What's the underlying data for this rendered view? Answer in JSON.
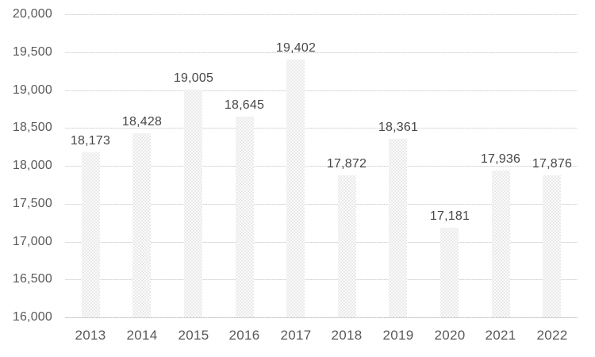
{
  "chart_data": {
    "type": "bar",
    "title": "",
    "xlabel": "",
    "ylabel": "",
    "categories": [
      "2013",
      "2014",
      "2015",
      "2016",
      "2017",
      "2018",
      "2019",
      "2020",
      "2021",
      "2022"
    ],
    "values": [
      18173,
      18428,
      19005,
      18645,
      19402,
      17872,
      18361,
      17181,
      17936,
      17876
    ],
    "data_labels": [
      "18,173",
      "18,428",
      "19,005",
      "18,645",
      "19,402",
      "17,872",
      "18,361",
      "17,181",
      "17,936",
      "17,876"
    ],
    "ylim": [
      16000,
      20000
    ],
    "ytick_step": 500,
    "ytick_labels_top_to_bottom": [
      "20,000",
      "19,500",
      "19,000",
      "18,500",
      "18,000",
      "17,500",
      "17,000",
      "16,500",
      "16,000"
    ],
    "grid": true,
    "legend": "none",
    "colors": {
      "background": "#ffffff",
      "bar_fill": "#e9e9e9",
      "bar_pattern_dot": "#ffffff",
      "gridline": "#d9d9d9",
      "axis_line": "#c3c3c3",
      "axis_text": "#595959",
      "data_label_text": "#484848"
    }
  }
}
